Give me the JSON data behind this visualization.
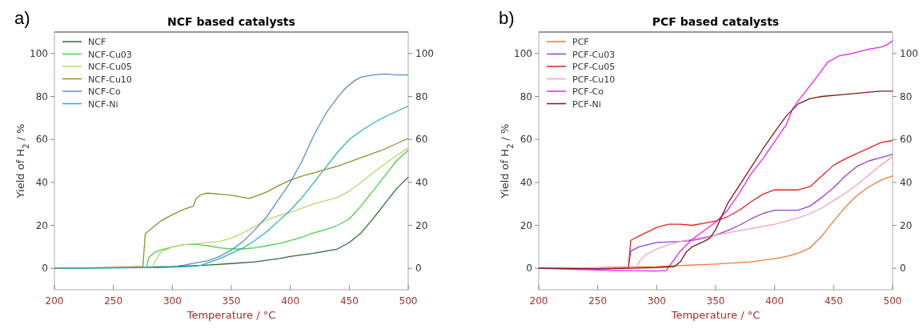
{
  "chart_data": [
    {
      "type": "line",
      "title": "NCF based catalysts",
      "xlabel": "Temperature / °C",
      "ylabel": "Yield of H$_{2}$ / %",
      "annotations": [
        "a)"
      ],
      "xlim": [
        200,
        500
      ],
      "xticks": [
        200,
        250,
        300,
        350,
        400,
        450,
        500
      ],
      "ylim": [
        -10,
        110
      ],
      "yticks": [
        0,
        20,
        40,
        60,
        80,
        100
      ],
      "y2lim": [
        -10,
        110
      ],
      "y2ticks": [
        0,
        20,
        40,
        60,
        80,
        100
      ],
      "legend": "top left",
      "grid": false,
      "series": [
        {
          "name": "NCF",
          "color": "#2e6b3a",
          "x": [
            200,
            250,
            300,
            330,
            350,
            370,
            390,
            400,
            420,
            440,
            450,
            460,
            470,
            480,
            490,
            500
          ],
          "values": [
            0,
            0.3,
            0.8,
            1.5,
            2.2,
            3,
            4.5,
            5.5,
            7,
            9,
            12,
            16.5,
            23,
            30,
            37,
            42.5
          ]
        },
        {
          "name": "NCF-Cu03",
          "color": "#4ccf4c",
          "x": [
            200,
            250,
            278,
            280,
            285,
            290,
            300,
            310,
            320,
            330,
            340,
            350,
            360,
            370,
            380,
            390,
            400,
            410,
            420,
            430,
            440,
            450,
            460,
            470,
            480,
            490,
            500
          ],
          "values": [
            0,
            0.3,
            0.5,
            5,
            7.5,
            8.5,
            10,
            11,
            11.2,
            10.5,
            9.5,
            9,
            9,
            9.5,
            10.5,
            11.5,
            13,
            14.5,
            16.5,
            18,
            20,
            23,
            29,
            36,
            43,
            50,
            55
          ]
        },
        {
          "name": "NCF-Cu05",
          "color": "#b5d96a",
          "x": [
            200,
            250,
            283,
            285,
            290,
            300,
            310,
            320,
            330,
            340,
            350,
            360,
            370,
            380,
            390,
            400,
            410,
            420,
            430,
            440,
            450,
            460,
            470,
            480,
            490,
            500
          ],
          "values": [
            0,
            0.3,
            0.5,
            3,
            7.5,
            10,
            11,
            11.5,
            12,
            12.5,
            14,
            16.5,
            19.5,
            22.5,
            24.5,
            26,
            28,
            30,
            31.5,
            33,
            36,
            40,
            44.5,
            48.5,
            52.5,
            56
          ]
        },
        {
          "name": "NCF-Cu10",
          "color": "#8f8f2e",
          "x": [
            200,
            250,
            275,
            277,
            280,
            290,
            300,
            310,
            318,
            320,
            325,
            330,
            340,
            350,
            360,
            365,
            370,
            380,
            390,
            400,
            410,
            420,
            430,
            440,
            450,
            460,
            470,
            480,
            490,
            500
          ],
          "values": [
            0,
            0.4,
            0.8,
            16,
            17.5,
            22,
            25,
            27.5,
            29,
            32.5,
            34.5,
            35,
            34.5,
            34,
            33,
            32.5,
            33.5,
            35.5,
            38.5,
            41,
            43,
            44.5,
            46,
            47.5,
            49.5,
            51.5,
            53.5,
            55.5,
            58,
            60.5
          ]
        },
        {
          "name": "NCF-Co",
          "color": "#5b8fc7",
          "x": [
            200,
            250,
            290,
            300,
            310,
            320,
            330,
            340,
            350,
            360,
            370,
            380,
            390,
            400,
            410,
            420,
            430,
            440,
            447,
            455,
            460,
            470,
            480,
            490,
            500
          ],
          "values": [
            0,
            0.2,
            0.3,
            0.7,
            1.5,
            2.5,
            3.5,
            5.5,
            8.5,
            12.5,
            18,
            24,
            32,
            40,
            50,
            62,
            72,
            79.5,
            84,
            87.5,
            89,
            90,
            90.5,
            90,
            90
          ]
        },
        {
          "name": "NCF-Ni",
          "color": "#2bb5b5",
          "x": [
            200,
            250,
            300,
            320,
            325,
            330,
            340,
            350,
            360,
            370,
            380,
            390,
            400,
            410,
            420,
            430,
            440,
            450,
            460,
            470,
            480,
            490,
            500
          ],
          "values": [
            0,
            0.2,
            0.5,
            1,
            1.5,
            2.5,
            4.5,
            7,
            9.5,
            13,
            17,
            22,
            27,
            33,
            40,
            47,
            54,
            60,
            64,
            67.5,
            70.5,
            73,
            75.5
          ]
        }
      ]
    },
    {
      "type": "line",
      "title": "PCF based catalysts",
      "xlabel": "Temperature / °C",
      "ylabel": "Yield of H$_{2}$ / %",
      "annotations": [
        "b)"
      ],
      "xlim": [
        200,
        500
      ],
      "xticks": [
        200,
        250,
        300,
        350,
        400,
        450,
        500
      ],
      "ylim": [
        -10,
        110
      ],
      "yticks": [
        0,
        20,
        40,
        60,
        80,
        100
      ],
      "y2lim": [
        -10,
        110
      ],
      "y2ticks": [
        0,
        20,
        40,
        60,
        80,
        100
      ],
      "legend": "top left",
      "grid": false,
      "series": [
        {
          "name": "PCF",
          "color": "#f07840",
          "x": [
            200,
            250,
            300,
            350,
            380,
            400,
            410,
            420,
            430,
            440,
            450,
            460,
            470,
            480,
            490,
            500
          ],
          "values": [
            0,
            0.3,
            0.8,
            2,
            3,
            4.5,
            5.5,
            7,
            9.5,
            15,
            22,
            28.5,
            34,
            38,
            41,
            43
          ]
        },
        {
          "name": "PCF-Cu03",
          "color": "#9a3fd0",
          "x": [
            200,
            250,
            276,
            278,
            285,
            300,
            320,
            330,
            340,
            350,
            360,
            370,
            380,
            390,
            400,
            420,
            430,
            440,
            450,
            460,
            470,
            480,
            490,
            500
          ],
          "values": [
            0,
            -0.3,
            0.3,
            8,
            10,
            12,
            12.5,
            13,
            14,
            15.5,
            17.5,
            20,
            23,
            25.5,
            27,
            27,
            29,
            33,
            37.5,
            43,
            47.5,
            50,
            51.5,
            53
          ]
        },
        {
          "name": "PCF-Cu05",
          "color": "#e82020",
          "x": [
            200,
            250,
            276,
            278,
            285,
            300,
            310,
            320,
            330,
            340,
            350,
            360,
            370,
            380,
            390,
            400,
            410,
            420,
            430,
            440,
            450,
            460,
            470,
            480,
            490,
            500
          ],
          "values": [
            0,
            0.2,
            0.5,
            13,
            15,
            19,
            20.5,
            20.5,
            20,
            21,
            22,
            24,
            27,
            31,
            34.5,
            36.5,
            36.5,
            36.5,
            38,
            43,
            48,
            51,
            53.5,
            56,
            58.5,
            59.5
          ]
        },
        {
          "name": "PCF-Cu10",
          "color": "#f0a0c8",
          "x": [
            200,
            250,
            283,
            285,
            290,
            300,
            310,
            320,
            330,
            340,
            350,
            360,
            370,
            380,
            390,
            400,
            410,
            420,
            430,
            440,
            450,
            460,
            470,
            480,
            490,
            500
          ],
          "values": [
            0,
            0.2,
            0.5,
            3,
            6,
            9,
            11,
            12.5,
            13.5,
            14.5,
            15.5,
            16.5,
            17.5,
            18.5,
            19.5,
            20.5,
            22,
            23.5,
            25.5,
            28,
            31.5,
            35,
            39,
            43.5,
            48,
            52
          ]
        },
        {
          "name": "PCF-Co",
          "color": "#f020f0",
          "x": [
            200,
            250,
            300,
            308,
            312,
            320,
            330,
            340,
            350,
            360,
            370,
            380,
            390,
            400,
            410,
            415,
            420,
            430,
            437,
            445,
            455,
            465,
            480,
            490,
            495,
            500
          ],
          "values": [
            0,
            -0.8,
            -1.3,
            -1,
            2,
            8,
            13.5,
            17.5,
            21.5,
            27,
            35,
            44,
            51,
            59,
            67,
            74,
            78,
            85,
            90,
            96,
            99,
            100,
            102,
            103,
            104,
            106
          ]
        },
        {
          "name": "PCF-Ni",
          "color": "#7a1a1a",
          "x": [
            200,
            250,
            300,
            315,
            320,
            325,
            330,
            340,
            345,
            350,
            360,
            370,
            380,
            390,
            400,
            410,
            420,
            430,
            440,
            460,
            480,
            490,
            500
          ],
          "values": [
            0,
            -0.3,
            0.3,
            0.8,
            3,
            7.5,
            10,
            12.5,
            14,
            18,
            30,
            38.5,
            47,
            55.5,
            63.5,
            71,
            76.5,
            79,
            80,
            81,
            82,
            82.5,
            82.5
          ]
        }
      ]
    }
  ]
}
